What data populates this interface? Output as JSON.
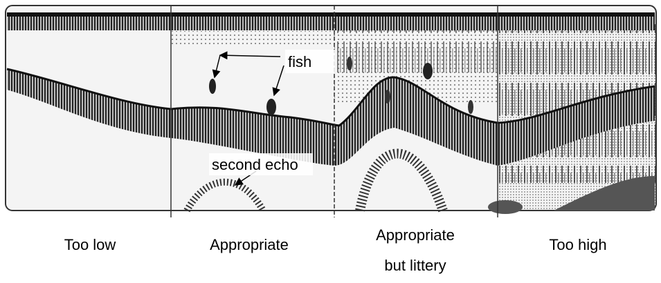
{
  "annotations": {
    "fish": "fish",
    "second_echo": "second echo"
  },
  "panels": [
    {
      "label": [
        "Too low"
      ]
    },
    {
      "label": [
        "Appropriate"
      ]
    },
    {
      "label": [
        "Appropriate",
        "but littery"
      ]
    },
    {
      "label": [
        "Too high"
      ]
    }
  ]
}
